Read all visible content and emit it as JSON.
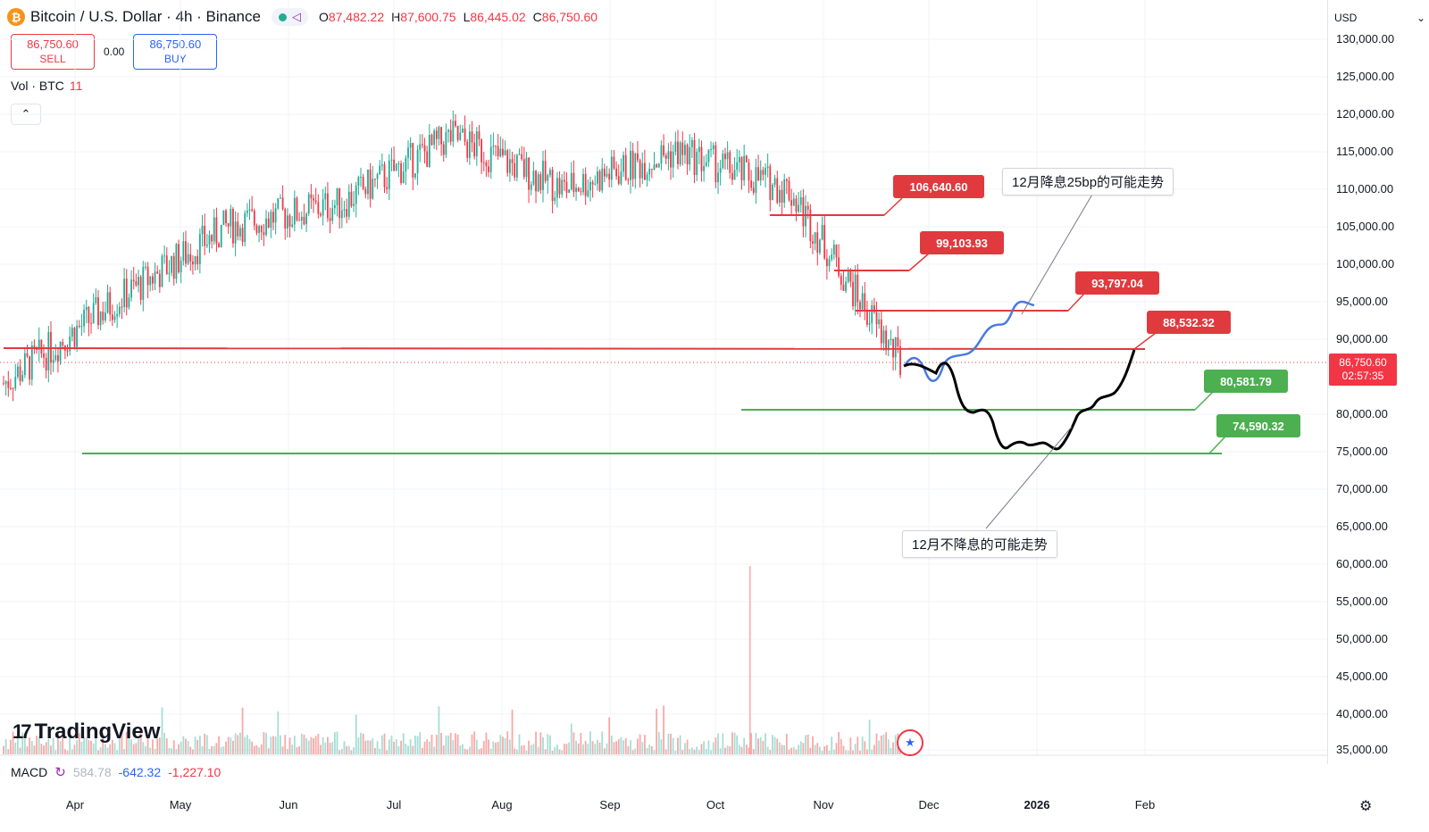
{
  "header": {
    "coin_symbol": "₿",
    "title": "Bitcoin / U.S. Dollar · 4h · Binance",
    "icons": [
      "bitcoin-coin-icon",
      "market-status-dot-icon",
      "share-icon"
    ],
    "ohlc": {
      "o_label": "O",
      "o": "87,482.22",
      "h_label": "H",
      "h": "87,600.75",
      "l_label": "L",
      "l": "86,445.02",
      "c_label": "C",
      "c": "86,750.60"
    }
  },
  "trade": {
    "sell_price": "86,750.60",
    "sell_label": "SELL",
    "spread": "0.00",
    "buy_price": "86,750.60",
    "buy_label": "BUY"
  },
  "volume": {
    "label": "Vol · BTC",
    "value": "11"
  },
  "collapse_icon": "chevron-up-icon",
  "axis": {
    "currency": "USD",
    "y_ticks": [
      "130,000.00",
      "125,000.00",
      "120,000.00",
      "115,000.00",
      "110,000.00",
      "105,000.00",
      "100,000.00",
      "95,000.00",
      "90,000.00",
      "80,000.00",
      "75,000.00",
      "70,000.00",
      "65,000.00",
      "60,000.00",
      "55,000.00",
      "50,000.00",
      "45,000.00",
      "40,000.00",
      "35,000.00"
    ],
    "x_ticks": [
      "Apr",
      "May",
      "Jun",
      "Jul",
      "Aug",
      "Sep",
      "Oct",
      "Nov",
      "Dec",
      "2026",
      "Feb"
    ]
  },
  "last_price": {
    "price": "86,750.60",
    "countdown": "02:57:35"
  },
  "annotations": {
    "levels_red": [
      "106,640.60",
      "99,103.93",
      "93,797.04",
      "88,532.32"
    ],
    "levels_green": [
      "80,581.79",
      "74,590.32"
    ],
    "note_cut": "12月降息25bp的可能走势",
    "note_no_cut": "12月不降息的可能走势"
  },
  "macd": {
    "label": "MACD",
    "v1": "584.78",
    "v2": "-642.32",
    "v3": "-1,227.10"
  },
  "branding": {
    "logo": "TradingView"
  },
  "colors": {
    "up": "#22ab94",
    "down": "#f23645",
    "accent": "#2962ff",
    "support": "#4caf50",
    "resistance": "#e03a3e"
  },
  "chart_data": {
    "type": "line",
    "title": "",
    "xlabel": "",
    "ylabel": "",
    "ylim": [
      35000,
      130000
    ],
    "x": [
      "Apr",
      "May",
      "Jun",
      "Jul",
      "Aug",
      "Sep",
      "Oct",
      "Nov",
      "Dec"
    ],
    "series": [
      {
        "values": [
          84000,
          95000,
          105000,
          108000,
          117000,
          110000,
          115000,
          110000,
          86750
        ]
      }
    ],
    "horizontal_levels": [
      106640.6,
      99103.93,
      93797.04,
      88532.32,
      80581.79,
      74590.32
    ],
    "projection_cut": [
      85500,
      84500,
      86500,
      88500,
      91000,
      94500
    ],
    "projection_no_cut": [
      86000,
      84000,
      79500,
      75000,
      75500,
      76000,
      80000,
      84000,
      88532.32
    ],
    "grid": true,
    "legend": "none"
  }
}
